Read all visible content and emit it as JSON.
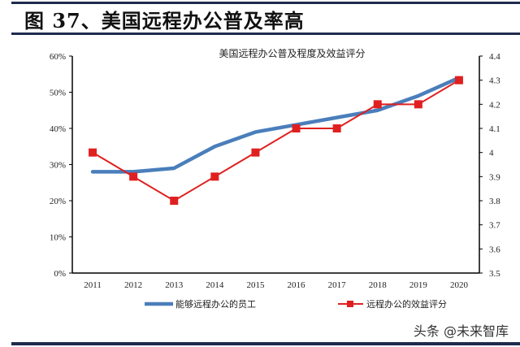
{
  "figure": {
    "title": "图 37、美国远程办公普及率高",
    "watermark": "头条 @未来智库"
  },
  "chart_data": {
    "type": "line",
    "title": "美国远程办公普及程度及效益评分",
    "categories": [
      "2011",
      "2012",
      "2013",
      "2014",
      "2015",
      "2016",
      "2017",
      "2018",
      "2019",
      "2020"
    ],
    "series": [
      {
        "name": "能够远程办公的员工",
        "axis": "left",
        "color": "#4a7ebb",
        "marker": "none",
        "values": [
          28,
          28,
          29,
          35,
          39,
          41,
          43,
          45,
          49,
          54
        ]
      },
      {
        "name": "远程办公的效益评分",
        "axis": "right",
        "color": "#e02020",
        "marker": "square",
        "values": [
          4.0,
          3.9,
          3.8,
          3.9,
          4.0,
          4.1,
          4.1,
          4.2,
          4.2,
          4.3
        ]
      }
    ],
    "left_axis": {
      "ylim": [
        0,
        60
      ],
      "ticks": [
        "0%",
        "10%",
        "20%",
        "30%",
        "40%",
        "50%",
        "60%"
      ]
    },
    "right_axis": {
      "ylim": [
        3.5,
        4.4
      ],
      "ticks": [
        "3.5",
        "3.6",
        "3.7",
        "3.8",
        "3.9",
        "4",
        "4.1",
        "4.2",
        "4.3",
        "4.4"
      ]
    },
    "xlabel": "",
    "ylabel": "",
    "grid": false,
    "legend_position": "bottom"
  }
}
